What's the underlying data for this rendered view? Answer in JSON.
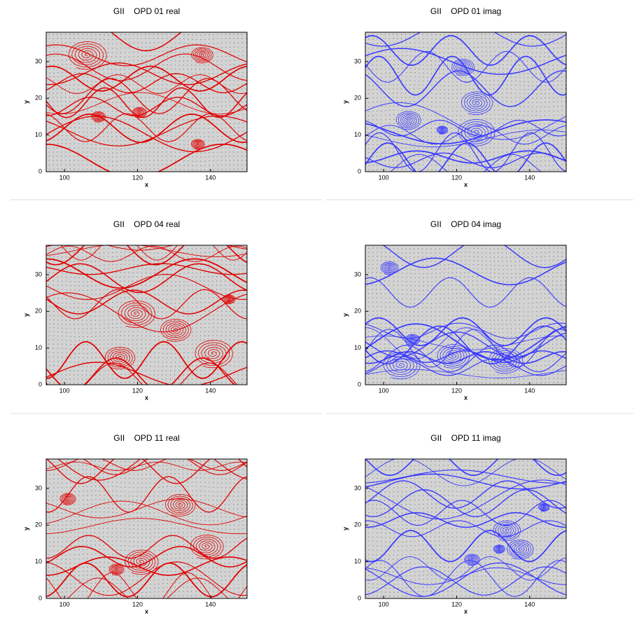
{
  "chart_data": [
    {
      "type": "streamline",
      "title": "GII    OPD 01 real",
      "xlabel": "x",
      "ylabel": "y",
      "xlim": [
        95,
        150
      ],
      "ylim": [
        0,
        38
      ],
      "xticks": [
        100,
        120,
        140
      ],
      "yticks": [
        0,
        10,
        20,
        30
      ],
      "color": "#e00000"
    },
    {
      "type": "streamline",
      "title": "GII    OPD 01 imag",
      "xlabel": "x",
      "ylabel": "y",
      "xlim": [
        95,
        150
      ],
      "ylim": [
        0,
        38
      ],
      "xticks": [
        100,
        120,
        140
      ],
      "yticks": [
        0,
        10,
        20,
        30
      ],
      "color": "#3a3aff"
    },
    {
      "type": "streamline",
      "title": "GII    OPD 04 real",
      "xlabel": "x",
      "ylabel": "y",
      "xlim": [
        95,
        150
      ],
      "ylim": [
        0,
        38
      ],
      "xticks": [
        100,
        120,
        140
      ],
      "yticks": [
        0,
        10,
        20,
        30
      ],
      "color": "#e00000"
    },
    {
      "type": "streamline",
      "title": "GII    OPD 04 imag",
      "xlabel": "x",
      "ylabel": "y",
      "xlim": [
        95,
        150
      ],
      "ylim": [
        0,
        38
      ],
      "xticks": [
        100,
        120,
        140
      ],
      "yticks": [
        0,
        10,
        20,
        30
      ],
      "color": "#3a3aff"
    },
    {
      "type": "streamline",
      "title": "GII    OPD 11 real",
      "xlabel": "x",
      "ylabel": "y",
      "xlim": [
        95,
        150
      ],
      "ylim": [
        0,
        38
      ],
      "xticks": [
        100,
        120,
        140
      ],
      "yticks": [
        0,
        10,
        20,
        30
      ],
      "color": "#e00000"
    },
    {
      "type": "streamline",
      "title": "GII    OPD 11 imag",
      "xlabel": "x",
      "ylabel": "y",
      "xlim": [
        95,
        150
      ],
      "ylim": [
        0,
        38
      ],
      "xticks": [
        100,
        120,
        140
      ],
      "yticks": [
        0,
        10,
        20,
        30
      ],
      "color": "#3a3aff"
    }
  ]
}
